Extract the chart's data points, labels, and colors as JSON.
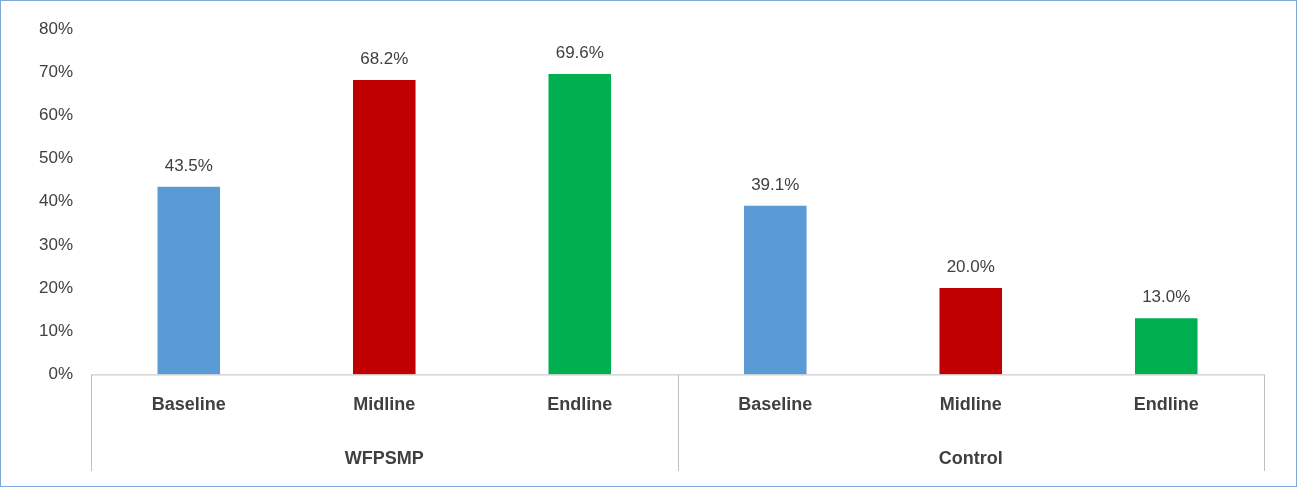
{
  "chart_data": {
    "type": "bar",
    "categories": [
      "Baseline",
      "Midline",
      "Endline",
      "Baseline",
      "Midline",
      "Endline"
    ],
    "values": [
      43.5,
      68.2,
      69.6,
      39.1,
      20.0,
      13.0
    ],
    "colors": [
      "#5b9bd5",
      "#c00000",
      "#00b050",
      "#5b9bd5",
      "#c00000",
      "#00b050"
    ],
    "value_labels": [
      "43.5%",
      "68.2%",
      "69.6%",
      "39.1%",
      "20.0%",
      "13.0%"
    ],
    "ylim": [
      0,
      80
    ],
    "yticks": [
      {
        "value": 0,
        "label": "0%"
      },
      {
        "value": 10,
        "label": "10%"
      },
      {
        "value": 20,
        "label": "20%"
      },
      {
        "value": 30,
        "label": "30%"
      },
      {
        "value": 40,
        "label": "40%"
      },
      {
        "value": 50,
        "label": "50%"
      },
      {
        "value": 60,
        "label": "60%"
      },
      {
        "value": 70,
        "label": "70%"
      },
      {
        "value": 80,
        "label": "80%"
      }
    ],
    "annotations": [
      "WFPSMP",
      "Control"
    ],
    "grid": false,
    "legend": false
  }
}
